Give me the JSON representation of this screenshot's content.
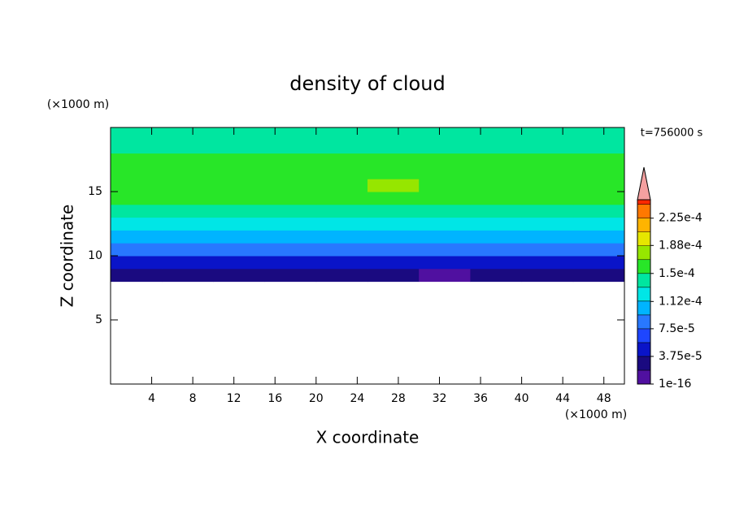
{
  "chart_data": {
    "type": "contour",
    "title": "density of cloud",
    "x_label": "X coordinate",
    "y_label": "Z coordinate",
    "x_unit": "(×1000 m)",
    "y_unit": "(×1000 m)",
    "annotation": "t=756000 s",
    "xlim": [
      0,
      50
    ],
    "ylim": [
      0,
      20
    ],
    "xticks": [
      4,
      8,
      12,
      16,
      20,
      24,
      28,
      32,
      36,
      40,
      44,
      48
    ],
    "yticks": [
      5,
      10,
      15
    ],
    "x": [
      2.5,
      7.5,
      12.5,
      17.5,
      22.5,
      27.5,
      32.5,
      37.5,
      42.5,
      47.5
    ],
    "y": [
      8.5,
      9.5,
      10.5,
      11.5,
      12.5,
      13.5,
      14.5,
      15.5,
      16.5,
      17.5,
      18.5,
      19.5
    ],
    "values": [
      [
        2.4e-05,
        2.6e-05,
        2.2e-05,
        2.5e-05,
        2.7e-05,
        2.6e-05,
        1.6e-05,
        2.3e-05,
        2.8e-05,
        2.5e-05
      ],
      [
        5.2e-05,
        4.8e-05,
        5.5e-05,
        5e-05,
        4.9e-05,
        5.1e-05,
        4.6e-05,
        4.8e-05,
        5e-05,
        5.3e-05
      ],
      [
        8e-05,
        7.8e-05,
        8.2e-05,
        7.9e-05,
        7.7e-05,
        8.1e-05,
        7.6e-05,
        7.9e-05,
        8e-05,
        7.8e-05
      ],
      [
        0.000102,
        0.0001,
        0.000104,
        0.000101,
        9.9e-05,
        0.000103,
        0.0001,
        0.000102,
        0.000101,
        0.0001
      ],
      [
        0.00012,
        0.000122,
        0.000119,
        0.000121,
        0.00012,
        0.000118,
        0.000121,
        0.00012,
        0.000122,
        0.000119
      ],
      [
        0.000142,
        0.000143,
        0.000141,
        0.000144,
        0.000142,
        0.00014,
        0.000143,
        0.000142,
        0.000141,
        0.000143
      ],
      [
        0.000156,
        0.000157,
        0.000158,
        0.00016,
        0.000158,
        0.000157,
        0.000155,
        0.000156,
        0.000157,
        0.000156
      ],
      [
        0.00016,
        0.000161,
        0.000162,
        0.000163,
        0.000164,
        0.000169,
        0.00016,
        0.000159,
        0.000161,
        0.00016
      ],
      [
        0.000158,
        0.000159,
        0.00016,
        0.000162,
        0.00016,
        0.000159,
        0.000157,
        0.000158,
        0.000159,
        0.000158
      ],
      [
        0.000153,
        0.000154,
        0.000155,
        0.000156,
        0.000154,
        0.000153,
        0.000152,
        0.000153,
        0.000154,
        0.000153
      ],
      [
        0.00014,
        0.000142,
        0.000144,
        0.000145,
        0.000143,
        0.000141,
        0.00014,
        0.000142,
        0.000143,
        0.00014
      ],
      [
        0.000136,
        0.000135,
        0.000137,
        0.000138,
        0.000136,
        0.000135,
        0.000134,
        0.000136,
        0.000137,
        0.000135
      ]
    ],
    "colorbar": {
      "clim": [
        0,
        0.00025
      ],
      "levels": [
        0,
        1.875e-05,
        3.75e-05,
        5.625e-05,
        7.5e-05,
        9.375e-05,
        0.0001125,
        0.00013125,
        0.00015,
        0.00016875,
        0.0001875,
        0.00020625,
        0.000225,
        0.00024375
      ],
      "colors": [
        "#5010a0",
        "#1a0a80",
        "#0a14c8",
        "#1e46ff",
        "#2878ff",
        "#00b4ff",
        "#00e6e6",
        "#00e6a0",
        "#28e628",
        "#96e600",
        "#e6e600",
        "#ffb400",
        "#ff7800",
        "#ff2800"
      ],
      "extend_color": "#f4a0a0",
      "ticks": [
        1e-16,
        {
          "value": 3.75e-05,
          "label": "3.75e-5"
        },
        {
          "value": 7.5e-05,
          "label": "7.5e-5"
        },
        {
          "value": 0.000112,
          "label": "1.12e-4"
        },
        {
          "value": 0.00015,
          "label": "1.5e-4"
        },
        {
          "value": 0.000188,
          "label": "1.88e-4"
        },
        {
          "value": 0.000225,
          "label": "2.25e-4"
        }
      ]
    }
  }
}
